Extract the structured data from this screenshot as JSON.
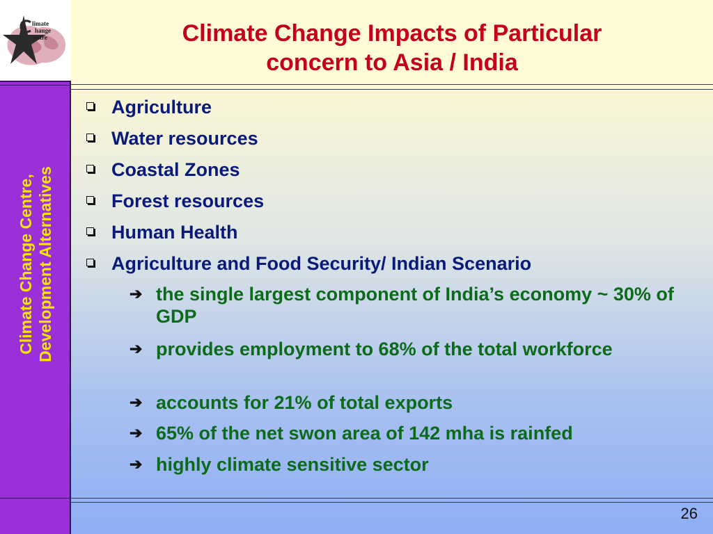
{
  "sidebar": {
    "vertical_text": [
      "Climate Change Centre,",
      "Development Alternatives"
    ],
    "logo": {
      "lines": [
        "limate",
        "hange",
        "entre"
      ],
      "icon": "star-globe-logo-icon",
      "colors": {
        "star": "#2a2a2a",
        "map": "#c98a9a"
      }
    }
  },
  "slide": {
    "title_lines": [
      "Climate Change Impacts of Particular",
      "concern to Asia / India"
    ],
    "bullets": [
      "Agriculture",
      "Water resources",
      "Coastal Zones",
      "Forest resources",
      "Human Health",
      "Agriculture and Food Security/ Indian Scenario"
    ],
    "sub_bullets": [
      "the single largest component of India’s economy ~ 30% of GDP",
      "provides employment to 68% of the total workforce",
      "accounts for 21% of total exports",
      "65% of the net swon area of 142 mha is rainfed",
      "highly climate sensitive sector"
    ],
    "page_number": "26"
  },
  "colors": {
    "sidebar_bg": "#9b30d9",
    "sidebar_text": "#f7e600",
    "title": "#c4001a",
    "bullet_text": "#0a1a7a",
    "sub_bullet_text": "#0c6b1a"
  }
}
